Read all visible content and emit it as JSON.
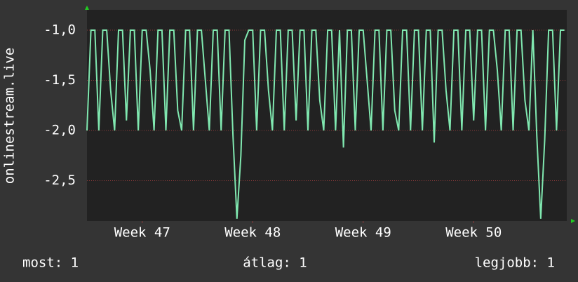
{
  "chart_data": {
    "type": "line",
    "y_label": "onlinestream.live",
    "x": [
      0,
      0.25,
      0.5,
      0.75,
      1,
      1.25,
      1.5,
      1.75,
      2,
      2.25,
      2.5,
      2.75,
      3,
      3.25,
      3.5,
      3.75,
      4,
      4.25,
      4.5,
      4.75,
      5,
      5.25,
      5.5,
      5.75,
      6,
      6.25,
      6.5,
      6.75,
      7,
      7.25,
      7.5,
      7.75,
      8,
      8.25,
      8.5,
      8.75,
      9,
      9.25,
      9.5,
      9.75,
      10,
      10.25,
      10.5,
      10.75,
      11,
      11.25,
      11.5,
      11.75,
      12,
      12.25,
      12.5,
      12.75,
      13,
      13.25,
      13.5,
      13.75,
      14,
      14.25,
      14.5,
      14.75,
      15,
      15.25,
      15.5,
      15.75,
      16,
      16.25,
      16.5,
      16.75,
      17,
      17.25,
      17.5,
      17.75,
      18,
      18.25,
      18.5,
      18.75,
      19,
      19.25,
      19.5,
      19.75,
      20,
      20.25,
      20.5,
      20.75,
      21,
      21.25,
      21.5,
      21.75,
      22,
      22.25,
      22.5,
      22.75,
      23,
      23.25,
      23.5,
      23.75,
      24,
      24.25,
      24.5,
      24.75,
      25,
      25.25,
      25.5,
      25.75,
      26,
      26.25,
      26.5,
      26.75,
      27,
      27.25,
      27.5,
      27.75,
      28,
      28.25,
      28.5,
      28.75,
      29,
      29.25,
      29.5,
      29.75,
      30,
      30.25
    ],
    "series": [
      {
        "color": "#80e8b0",
        "values": [
          -2.0,
          -1.0,
          -1.0,
          -2.0,
          -1.0,
          -1.0,
          -1.6,
          -2.0,
          -1.0,
          -1.0,
          -1.9,
          -1.0,
          -1.0,
          -2.0,
          -1.0,
          -1.0,
          -1.4,
          -2.0,
          -1.0,
          -1.0,
          -2.0,
          -1.0,
          -1.0,
          -1.8,
          -2.0,
          -1.0,
          -1.0,
          -2.0,
          -1.0,
          -1.0,
          -1.5,
          -2.0,
          -1.0,
          -1.0,
          -2.0,
          -1.0,
          -1.0,
          -2.05,
          -2.88,
          -2.25,
          -1.1,
          -1.0,
          -1.0,
          -2.0,
          -1.0,
          -1.0,
          -1.6,
          -2.0,
          -1.0,
          -1.0,
          -2.0,
          -1.0,
          -1.0,
          -1.9,
          -1.0,
          -1.0,
          -2.0,
          -1.0,
          -1.0,
          -1.7,
          -2.0,
          -1.0,
          -1.0,
          -2.0,
          -1.0,
          -2.17,
          -1.0,
          -1.0,
          -2.0,
          -1.0,
          -1.0,
          -1.5,
          -2.0,
          -1.0,
          -1.0,
          -2.0,
          -1.0,
          -1.0,
          -1.8,
          -2.0,
          -1.0,
          -1.0,
          -2.0,
          -1.0,
          -1.0,
          -2.0,
          -1.0,
          -1.0,
          -2.12,
          -1.0,
          -1.0,
          -1.6,
          -2.0,
          -1.0,
          -1.0,
          -2.0,
          -1.0,
          -1.0,
          -1.9,
          -1.0,
          -1.0,
          -2.0,
          -1.0,
          -1.0,
          -1.4,
          -2.0,
          -1.0,
          -1.0,
          -2.0,
          -1.0,
          -1.0,
          -1.7,
          -2.0,
          -1.0,
          -2.05,
          -2.88,
          -2.1,
          -1.0,
          -1.0,
          -2.0,
          -1.0,
          -1.0
        ]
      }
    ],
    "xlim": [
      0,
      30.4
    ],
    "xticks": [
      {
        "value": 3.5,
        "label": "Week 47"
      },
      {
        "value": 10.5,
        "label": "Week 48"
      },
      {
        "value": 17.5,
        "label": "Week 49"
      },
      {
        "value": 24.5,
        "label": "Week 50"
      }
    ],
    "ylim": [
      -2.902,
      -0.797
    ],
    "yticks": [
      {
        "value": -1.0,
        "label": "-1,0"
      },
      {
        "value": -1.5,
        "label": "-1,5"
      },
      {
        "value": -2.0,
        "label": "-2,0"
      },
      {
        "value": -2.5,
        "label": "-2,5"
      }
    ],
    "grid": true,
    "stats": [
      "most: 1",
      "átlag: 1",
      "legjobb: 1"
    ]
  }
}
